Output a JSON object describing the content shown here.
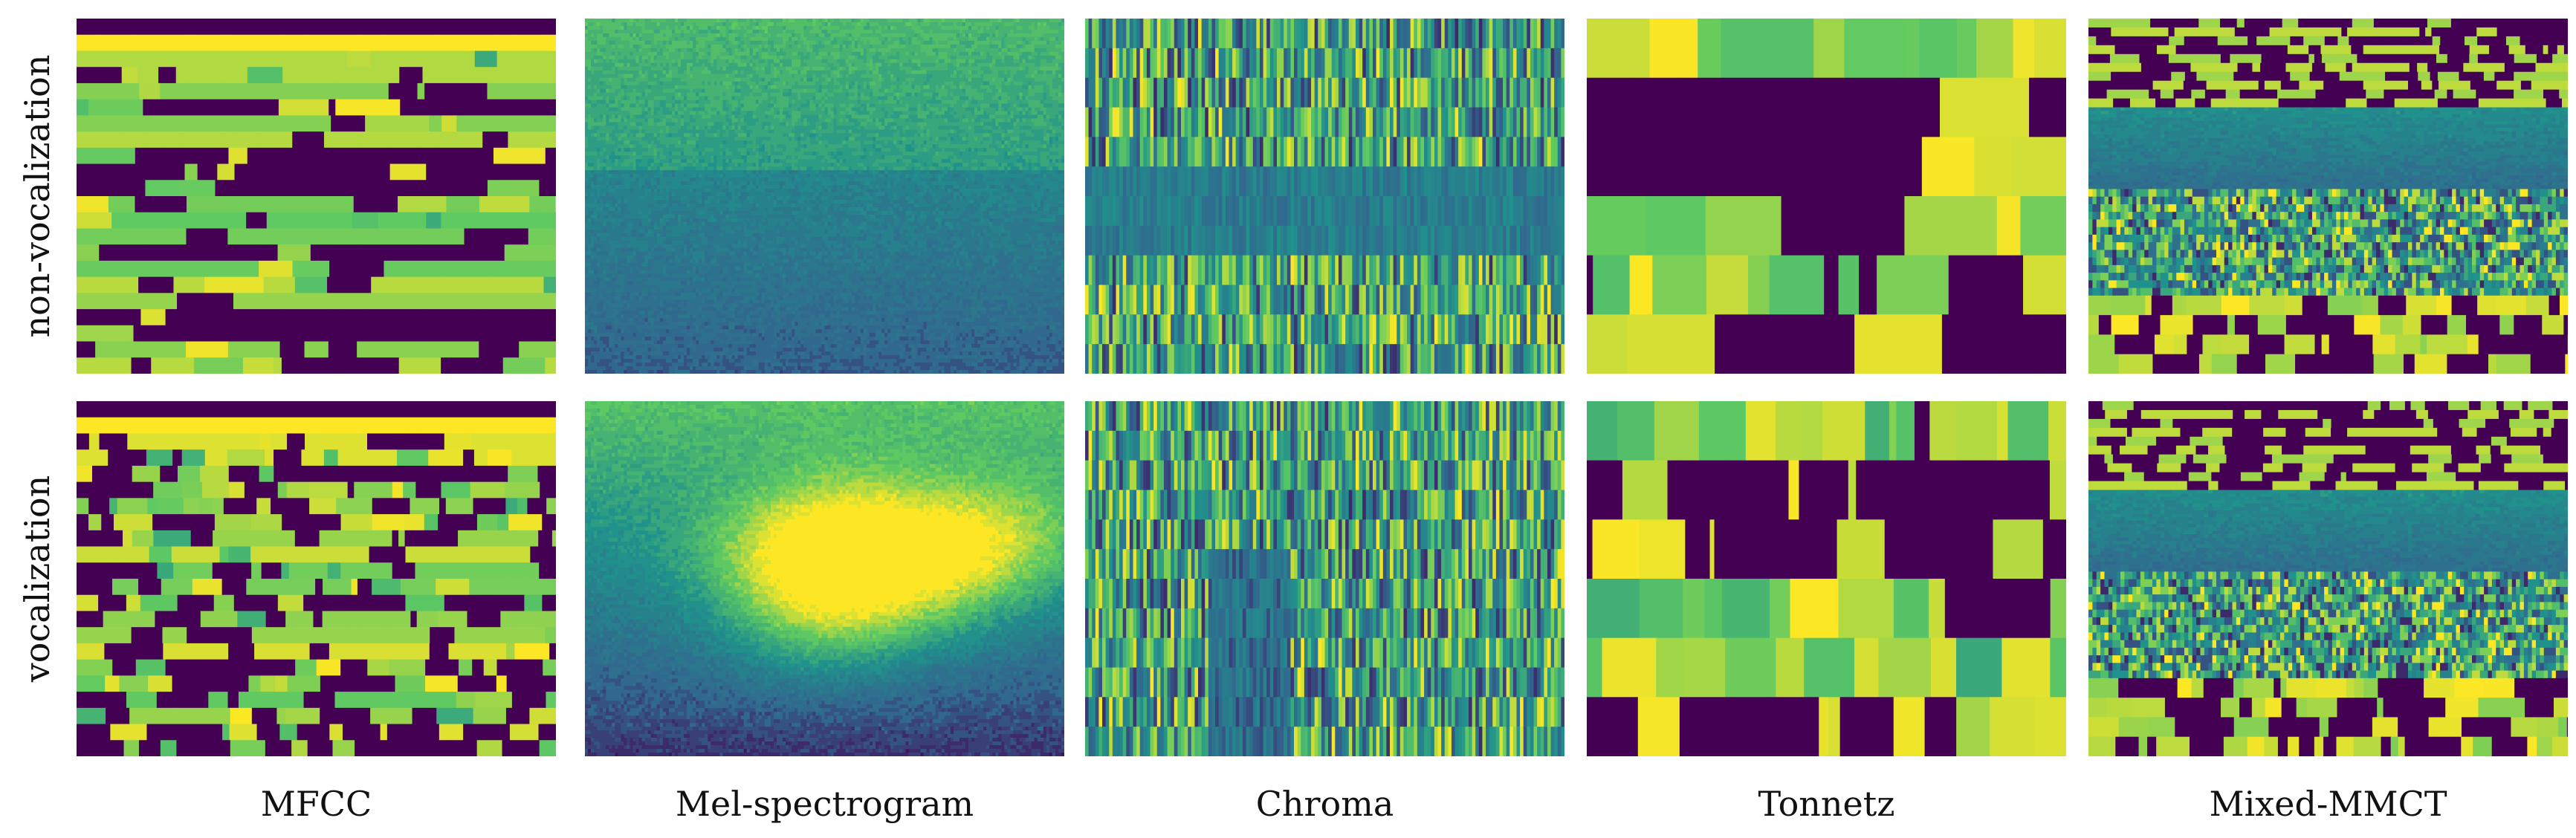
{
  "figure": {
    "rows": [
      {
        "label": "non-vocalization",
        "key": "nonvoc"
      },
      {
        "label": "vocalization",
        "key": "voc"
      }
    ],
    "columns": [
      {
        "label": "MFCC",
        "kind": "mfcc"
      },
      {
        "label": "Mel-spectrogram",
        "kind": "mel"
      },
      {
        "label": "Chroma",
        "kind": "chroma"
      },
      {
        "label": "Tonnetz",
        "kind": "tonnetz"
      },
      {
        "label": "Mixed-MMCT",
        "kind": "mixed"
      }
    ],
    "colormap": "viridis",
    "colors": {
      "dark": "#440154",
      "blue": "#31688e",
      "teal": "#21918c",
      "green": "#5ec962",
      "yellow": "#fde725"
    }
  }
}
